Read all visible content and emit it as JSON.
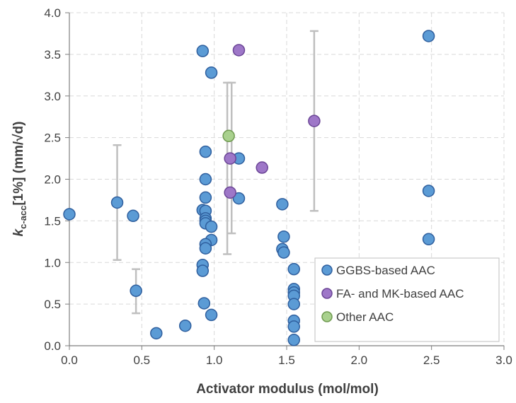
{
  "chart_data": {
    "type": "scatter",
    "xlabel": "Activator modulus (mol/mol)",
    "ylabel": {
      "k": "k",
      "sub": "c-acc",
      "rest": "[1%] (mm/√d)"
    },
    "xlim": [
      0,
      3
    ],
    "ylim": [
      0,
      4
    ],
    "xticks": [
      "0.0",
      "0.5",
      "1.0",
      "1.5",
      "2.0",
      "2.5",
      "3.0"
    ],
    "yticks": [
      "0.0",
      "0.5",
      "1.0",
      "1.5",
      "2.0",
      "2.5",
      "3.0",
      "3.5",
      "4.0"
    ],
    "grid": true,
    "legend_position": "bottom-right",
    "series": [
      {
        "name": "GGBS-based AAC",
        "color": "#5b9bd5",
        "edge": "#2f5f9e",
        "points": [
          [
            0.0,
            1.58
          ],
          [
            0.33,
            1.72
          ],
          [
            0.44,
            1.56
          ],
          [
            0.46,
            0.66
          ],
          [
            0.6,
            0.15
          ],
          [
            0.8,
            0.24
          ],
          [
            0.92,
            3.54
          ],
          [
            0.98,
            3.28
          ],
          [
            0.94,
            2.33
          ],
          [
            0.94,
            2.0
          ],
          [
            0.94,
            1.78
          ],
          [
            0.92,
            1.63
          ],
          [
            0.94,
            1.62
          ],
          [
            0.94,
            1.53
          ],
          [
            0.94,
            1.5
          ],
          [
            0.94,
            1.47
          ],
          [
            0.98,
            1.43
          ],
          [
            0.98,
            1.27
          ],
          [
            0.94,
            1.22
          ],
          [
            0.94,
            1.17
          ],
          [
            0.92,
            0.97
          ],
          [
            0.92,
            0.9
          ],
          [
            0.93,
            0.51
          ],
          [
            0.98,
            0.37
          ],
          [
            1.17,
            2.25
          ],
          [
            1.17,
            1.77
          ],
          [
            1.47,
            1.7
          ],
          [
            1.48,
            1.31
          ],
          [
            1.47,
            1.16
          ],
          [
            1.48,
            1.12
          ],
          [
            1.55,
            0.92
          ],
          [
            1.55,
            0.68
          ],
          [
            1.55,
            0.64
          ],
          [
            1.55,
            0.6
          ],
          [
            1.55,
            0.5
          ],
          [
            1.55,
            0.3
          ],
          [
            1.55,
            0.23
          ],
          [
            1.55,
            0.07
          ],
          [
            2.48,
            3.72
          ],
          [
            2.48,
            1.86
          ],
          [
            2.48,
            1.28
          ]
        ]
      },
      {
        "name": "FA- and MK-based AAC",
        "color": "#9e77c8",
        "edge": "#6b4596",
        "points": [
          [
            1.17,
            3.55
          ],
          [
            1.11,
            2.25
          ],
          [
            1.11,
            1.84
          ],
          [
            1.33,
            2.14
          ],
          [
            1.69,
            2.7
          ]
        ]
      },
      {
        "name": "Other AAC",
        "color": "#a9d18e",
        "edge": "#6f9a50",
        "points": [
          [
            1.1,
            2.52
          ]
        ]
      }
    ],
    "error_bars": [
      {
        "x": 0.33,
        "low": 1.03,
        "high": 2.41
      },
      {
        "x": 0.46,
        "low": 0.39,
        "high": 0.92
      },
      {
        "x": 1.09,
        "low": 1.1,
        "high": 3.16
      },
      {
        "x": 1.12,
        "low": 1.35,
        "high": 3.16
      },
      {
        "x": 1.69,
        "low": 1.62,
        "high": 3.78
      }
    ]
  }
}
